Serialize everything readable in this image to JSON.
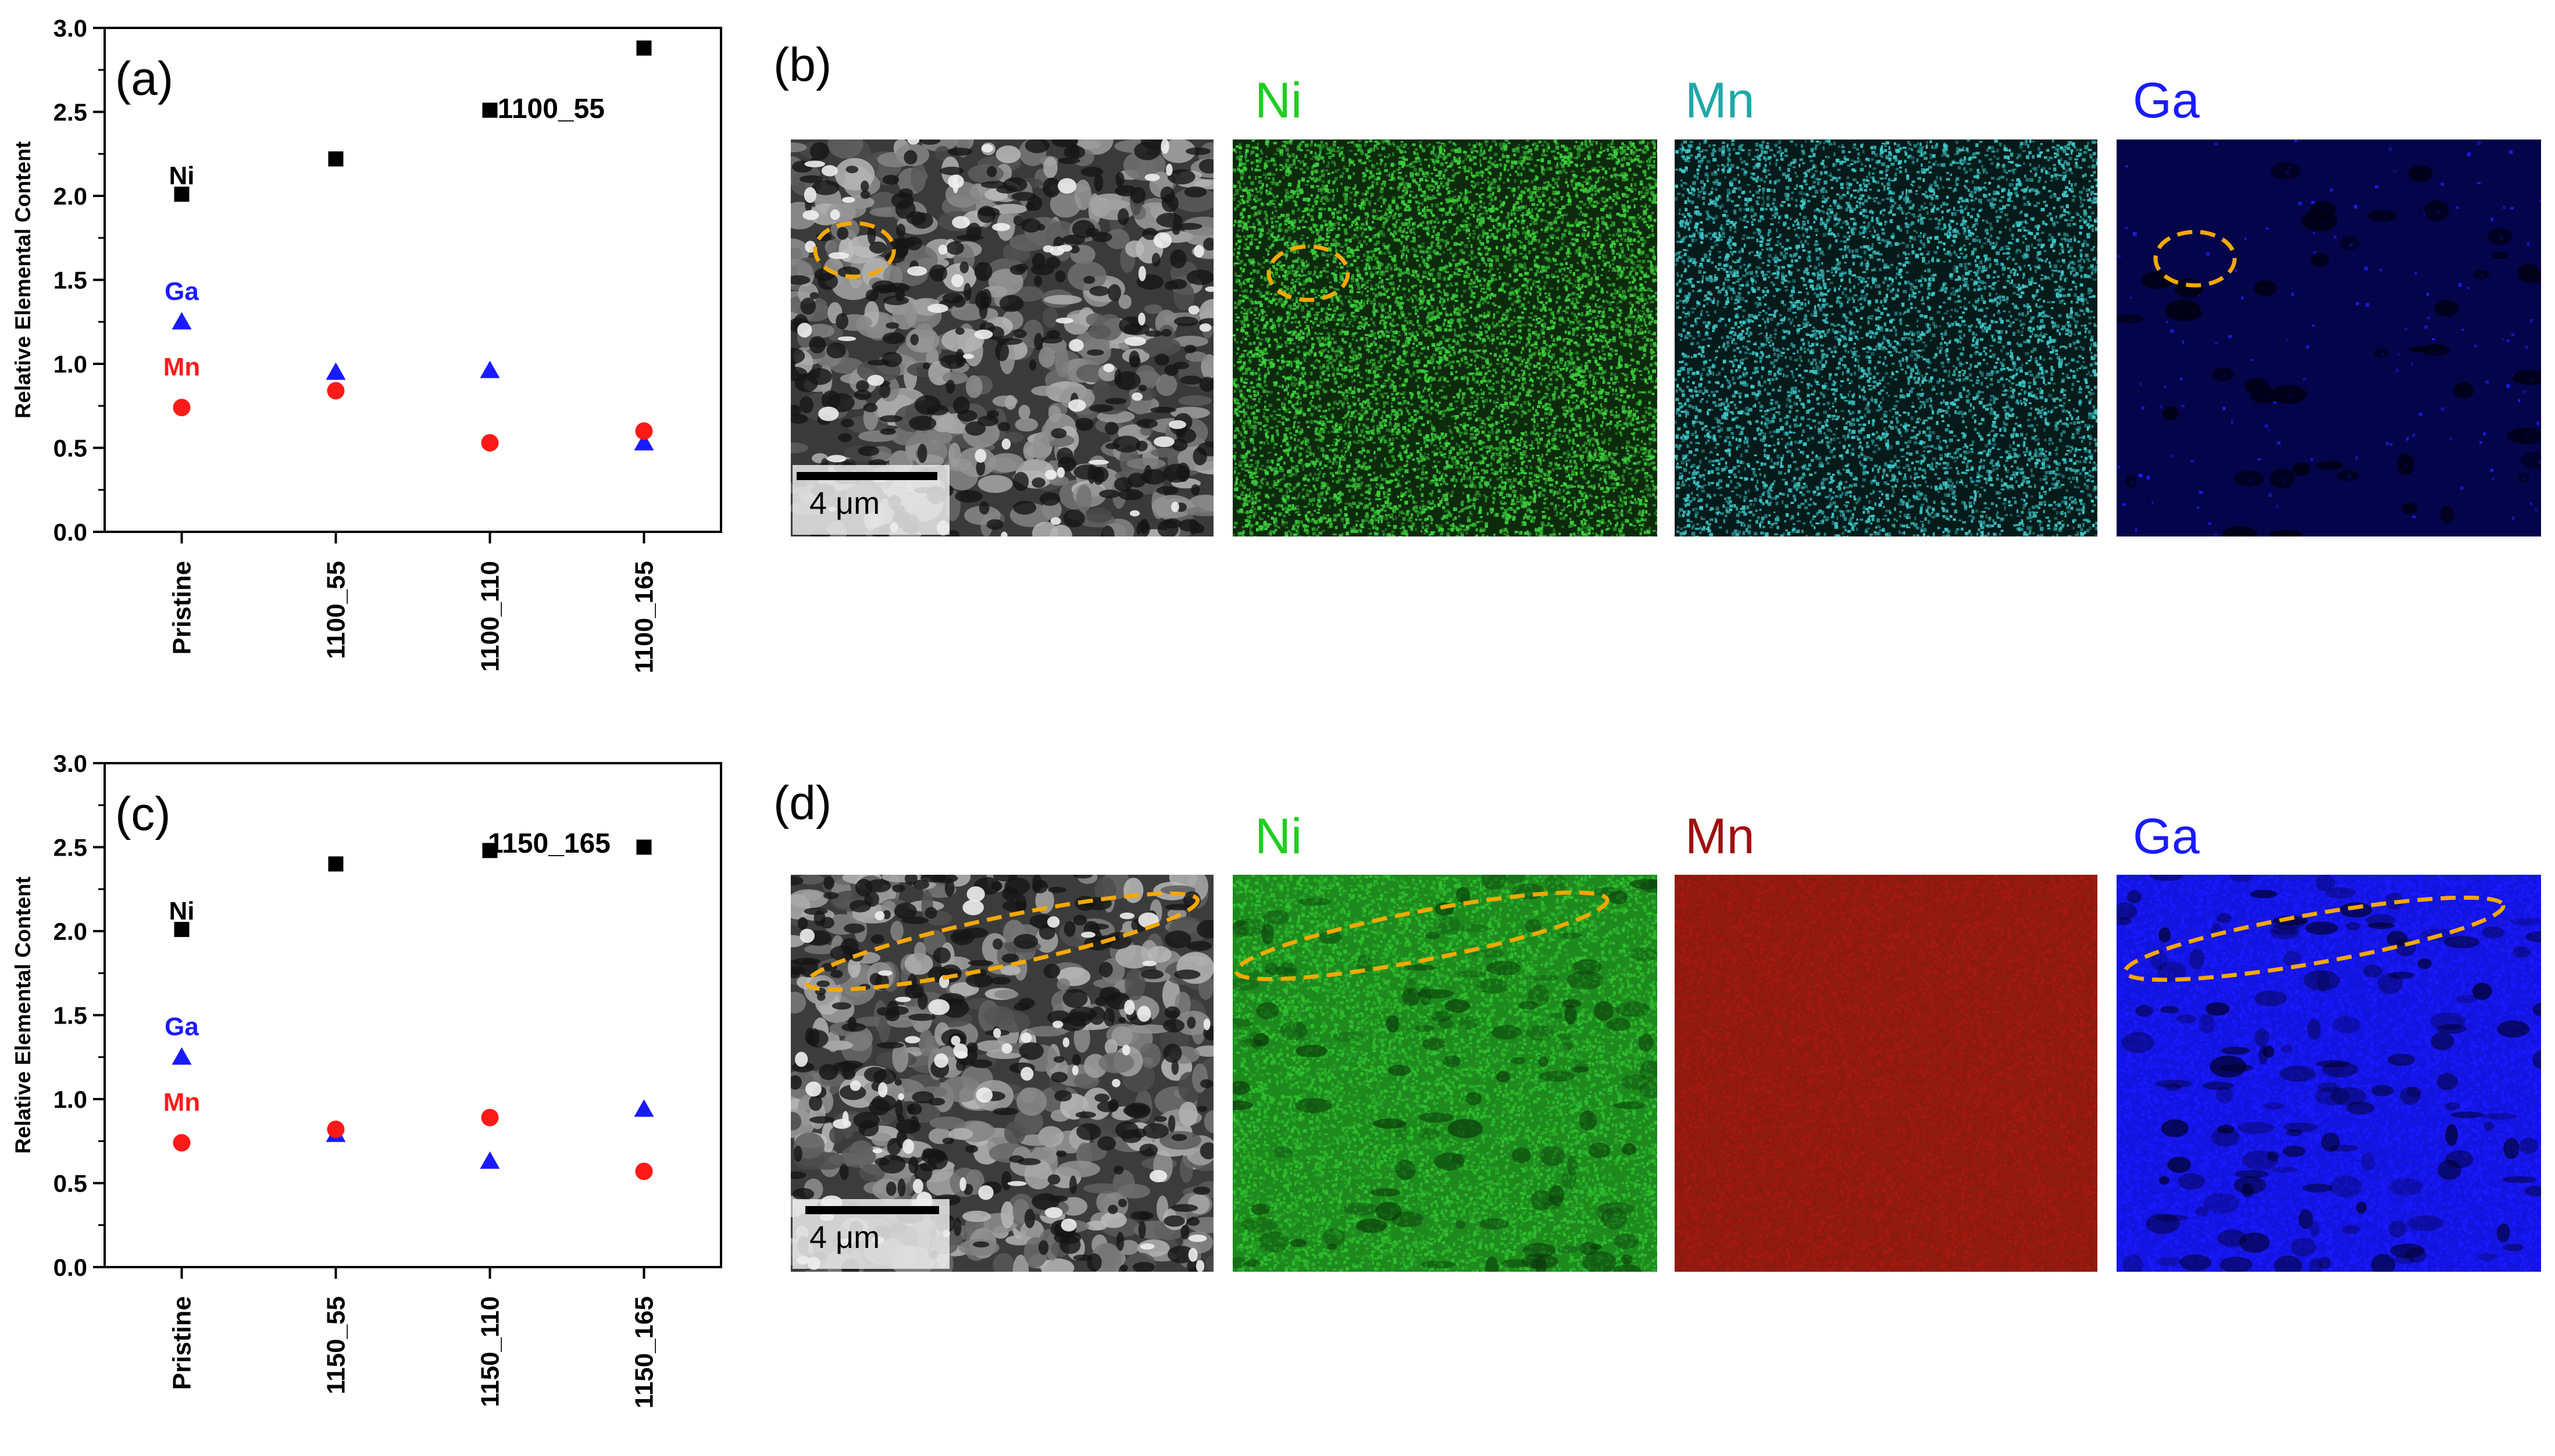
{
  "chart_data": [
    {
      "panel": "(a)",
      "type": "scatter",
      "ylabel": "Relative Elemental Content",
      "ylim": [
        0,
        3.0
      ],
      "yticks": [
        "0.0",
        "0.5",
        "1.0",
        "1.5",
        "2.0",
        "2.5",
        "3.0"
      ],
      "categories": [
        "Pristine",
        "1100_55",
        "1100_110",
        "1100_165"
      ],
      "series": [
        {
          "name": "Ni",
          "marker": "square",
          "color": "#000000",
          "values": [
            2.01,
            2.22,
            2.51,
            2.88
          ]
        },
        {
          "name": "Ga",
          "marker": "triangle",
          "color": "#1a1aff",
          "values": [
            1.25,
            0.95,
            0.96,
            0.53
          ]
        },
        {
          "name": "Mn",
          "marker": "circle",
          "color": "#ff1a1a",
          "values": [
            0.74,
            0.84,
            0.53,
            0.6
          ]
        }
      ],
      "series_label_positions": {
        "Ni": 2.07,
        "Ga": 1.38,
        "Mn": 0.93
      }
    },
    {
      "panel": "(c)",
      "type": "scatter",
      "ylabel": "Relative Elemental Content",
      "ylim": [
        0,
        3.0
      ],
      "yticks": [
        "0.0",
        "0.5",
        "1.0",
        "1.5",
        "2.0",
        "2.5",
        "3.0"
      ],
      "categories": [
        "Pristine",
        "1150_55",
        "1150_110",
        "1150_165"
      ],
      "series": [
        {
          "name": "Ni",
          "marker": "square",
          "color": "#000000",
          "values": [
            2.01,
            2.4,
            2.48,
            2.5
          ]
        },
        {
          "name": "Ga",
          "marker": "triangle",
          "color": "#1a1aff",
          "values": [
            1.25,
            0.79,
            0.63,
            0.94
          ]
        },
        {
          "name": "Mn",
          "marker": "circle",
          "color": "#ff1a1a",
          "values": [
            0.74,
            0.82,
            0.89,
            0.57
          ]
        }
      ],
      "series_label_positions": {
        "Ni": 2.07,
        "Ga": 1.38,
        "Mn": 0.93
      }
    }
  ],
  "panels": {
    "b": {
      "letter": "(b)",
      "sample": "1100_55",
      "scale_bar": "4 μm",
      "maps": [
        {
          "label": "Ni",
          "label_color": "#22cc22",
          "map_color": "#3ccf3c"
        },
        {
          "label": "Mn",
          "label_color": "#1fa8a8",
          "map_color": "#3ec8c8"
        },
        {
          "label": "Ga",
          "label_color": "#1a1aff",
          "map_color": "#1d1dff"
        }
      ]
    },
    "d": {
      "letter": "(d)",
      "sample": "1150_165",
      "scale_bar": "4 μm",
      "maps": [
        {
          "label": "Ni",
          "label_color": "#22cc22",
          "map_color": "#2fbf2f"
        },
        {
          "label": "Mn",
          "label_color": "#a01010",
          "map_color": "#a51a10"
        },
        {
          "label": "Ga",
          "label_color": "#1a1aff",
          "map_color": "#1a1aff"
        }
      ]
    }
  },
  "highlight_color": "#f5a800"
}
